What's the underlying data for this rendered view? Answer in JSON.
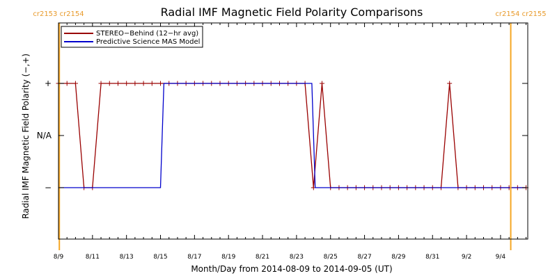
{
  "colors": {
    "stereo": "#990000",
    "model": "#0000cc",
    "rotation": "#f5a623",
    "rotation_text": "#e89a2a"
  },
  "chart_data": {
    "type": "line",
    "title": "Radial IMF Magnetic Field Polarity Comparisons",
    "xlabel": "Month/Day from 2014-08-09 to 2014-09-05 (UT)",
    "ylabel": "Radial IMF Magnetic Field Polarity (−,+)",
    "xlim": [
      0,
      27.6
    ],
    "ylim": [
      -2,
      2
    ],
    "x_ticks": [
      {
        "x": 0,
        "label": "8/9"
      },
      {
        "x": 2,
        "label": "8/11"
      },
      {
        "x": 4,
        "label": "8/13"
      },
      {
        "x": 6,
        "label": "8/15"
      },
      {
        "x": 8,
        "label": "8/17"
      },
      {
        "x": 10,
        "label": "8/19"
      },
      {
        "x": 12,
        "label": "8/21"
      },
      {
        "x": 14,
        "label": "8/23"
      },
      {
        "x": 16,
        "label": "8/25"
      },
      {
        "x": 18,
        "label": "8/27"
      },
      {
        "x": 20,
        "label": "8/29"
      },
      {
        "x": 22,
        "label": "8/31"
      },
      {
        "x": 24,
        "label": "9/2"
      },
      {
        "x": 26,
        "label": "9/4"
      }
    ],
    "y_ticks": [
      {
        "y": 1,
        "label": "+"
      },
      {
        "y": 0,
        "label": "N/A"
      },
      {
        "y": -1,
        "label": "−"
      }
    ],
    "rotation_boundaries": [
      {
        "x": 0.05,
        "label": "cr2153 cr2154"
      },
      {
        "x": 26.6,
        "label": "cr2154 cr2155"
      }
    ],
    "legend": "top-left",
    "series": [
      {
        "name": "STEREO−Behind (12−hr avg)",
        "marker": "+",
        "x": [
          0,
          0.5,
          1.0,
          1.5,
          2.0,
          2.5,
          3.0,
          3.5,
          4.0,
          4.5,
          5.0,
          5.5,
          6.0,
          6.5,
          7.0,
          7.5,
          8.0,
          8.5,
          9.0,
          9.5,
          10.0,
          10.5,
          11.0,
          11.5,
          12.0,
          12.5,
          13.0,
          13.5,
          14.0,
          14.5,
          15.0,
          15.5,
          16.0,
          16.5,
          17.0,
          17.5,
          18.0,
          18.5,
          19.0,
          19.5,
          20.0,
          20.5,
          21.0,
          21.5,
          22.0,
          22.5,
          23.0,
          23.5,
          24.0,
          24.5,
          25.0,
          25.5,
          26.0,
          26.5,
          27.0,
          27.5
        ],
        "y": [
          1,
          1,
          1,
          -1,
          -1,
          1,
          1,
          1,
          1,
          1,
          1,
          1,
          1,
          1,
          1,
          1,
          1,
          1,
          1,
          1,
          1,
          1,
          1,
          1,
          1,
          1,
          1,
          1,
          1,
          1,
          -1,
          1,
          -1,
          -1,
          -1,
          -1,
          -1,
          -1,
          -1,
          -1,
          -1,
          -1,
          -1,
          -1,
          -1,
          -1,
          1,
          -1,
          -1,
          -1,
          -1,
          -1,
          -1,
          -1,
          -1,
          -1
        ]
      },
      {
        "name": "Predictive Science MAS Model",
        "marker": "none",
        "x": [
          0,
          6.0,
          6.2,
          14.9,
          15.1,
          27.5
        ],
        "y": [
          -1,
          -1,
          1,
          1,
          -1,
          -1
        ]
      }
    ]
  }
}
